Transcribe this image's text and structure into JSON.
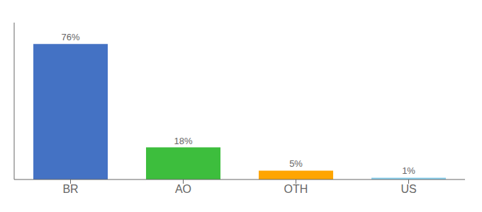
{
  "chart_data": {
    "type": "bar",
    "categories": [
      "BR",
      "AO",
      "OTH",
      "US"
    ],
    "values": [
      76,
      18,
      5,
      1
    ],
    "value_labels": [
      "76%",
      "18%",
      "5%",
      "1%"
    ],
    "data_labels": true,
    "colors": [
      "#4472C4",
      "#3DBE3D",
      "#FFA500",
      "#87CEEB"
    ],
    "ylim": [
      0,
      88
    ],
    "tick_labels": "x"
  }
}
